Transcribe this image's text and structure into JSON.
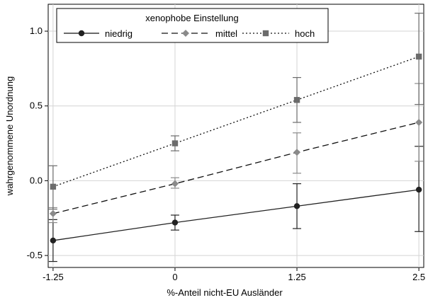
{
  "chart_data": {
    "type": "line",
    "xlabel": "%-Anteil nicht-EU Ausländer",
    "ylabel": "wahrgenommene Unordnung",
    "x": [
      -1.25,
      0,
      1.25,
      2.5
    ],
    "x_tick_labels": [
      "-1.25",
      "0",
      "1.25",
      "2.5"
    ],
    "xlim": [
      -1.3,
      2.55
    ],
    "ylim": [
      -0.58,
      1.18
    ],
    "y_ticks": [
      -0.5,
      0,
      0.5,
      1
    ],
    "y_tick_labels": [
      "-0.5",
      "0.0",
      "0.5",
      "1.0"
    ],
    "grid": true,
    "legend": {
      "title": "xenophobe Einstellung",
      "placement": "top-left"
    },
    "series": [
      {
        "name": "niedrig",
        "style": "solid",
        "marker": "circle",
        "color": "#222222",
        "values": [
          -0.4,
          -0.28,
          -0.17,
          -0.06
        ],
        "err_low": [
          -0.54,
          -0.33,
          -0.32,
          -0.34
        ],
        "err_high": [
          -0.26,
          -0.23,
          -0.02,
          0.23
        ]
      },
      {
        "name": "mittel",
        "style": "dashed",
        "marker": "diamond",
        "color": "#8a8a8a",
        "values": [
          -0.22,
          -0.02,
          0.19,
          0.39
        ],
        "err_low": [
          -0.28,
          -0.05,
          0.05,
          0.13
        ],
        "err_high": [
          -0.18,
          0.02,
          0.32,
          0.65
        ]
      },
      {
        "name": "hoch",
        "style": "dotted",
        "marker": "square",
        "color": "#6b6b6b",
        "values": [
          -0.04,
          0.25,
          0.54,
          0.83
        ],
        "err_low": [
          -0.19,
          0.2,
          0.39,
          0.51
        ],
        "err_high": [
          0.1,
          0.3,
          0.69,
          1.12
        ]
      }
    ]
  }
}
